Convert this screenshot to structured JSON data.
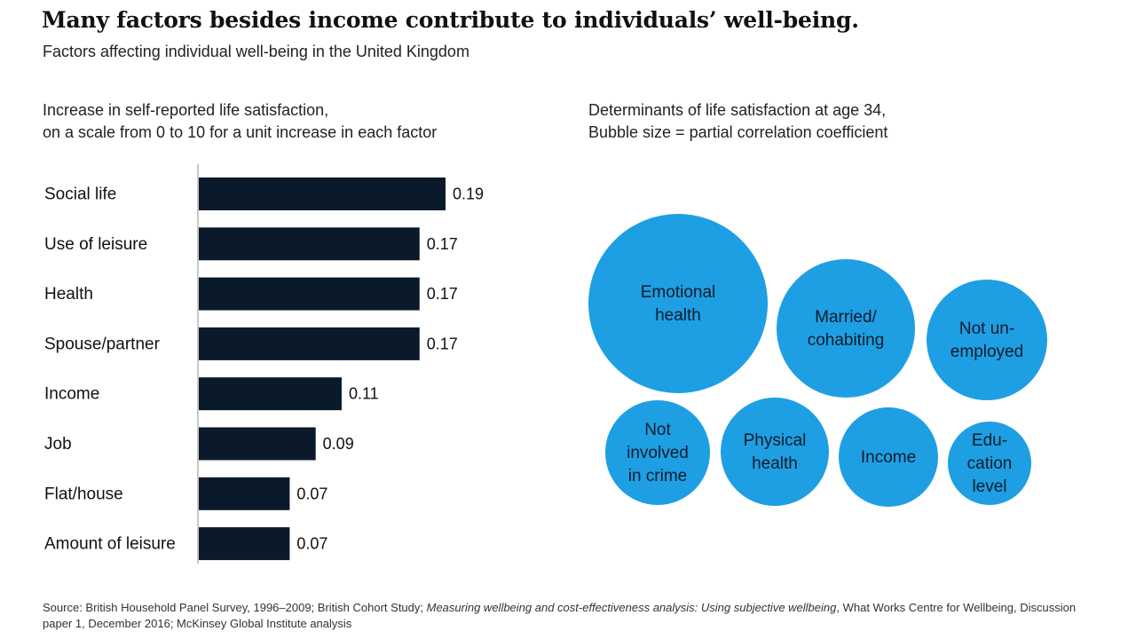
{
  "title": "Many factors besides income contribute to individuals’ well-being.",
  "subtitle": "Factors affecting individual well-being in the United Kingdom",
  "chart_data": [
    {
      "type": "bar",
      "orientation": "horizontal",
      "description_line1": "Increase in self-reported life satisfaction,",
      "description_line2": "on a scale from 0 to 10 for a unit increase in each factor",
      "categories": [
        "Social life",
        "Use of leisure",
        "Health",
        "Spouse/partner",
        "Income",
        "Job",
        "Flat/house",
        "Amount of leisure"
      ],
      "values": [
        0.19,
        0.17,
        0.17,
        0.17,
        0.11,
        0.09,
        0.07,
        0.07
      ],
      "value_labels": [
        "0.19",
        "0.17",
        "0.17",
        "0.17",
        "0.11",
        "0.09",
        "0.07",
        "0.07"
      ],
      "xlim": [
        0,
        0.19
      ],
      "bar_color": "#0b1a2a"
    },
    {
      "type": "bubble",
      "description_line1": "Determinants of life satisfaction at age 34,",
      "description_line2": "Bubble size = partial correlation coefficient",
      "bubble_color": "#1e9fe3",
      "bubbles": [
        {
          "label": [
            "Emotional",
            "health"
          ],
          "size_rank": 1
        },
        {
          "label": [
            "Married/",
            "cohabiting"
          ],
          "size_rank": 2
        },
        {
          "label": [
            "Not un-",
            "employed"
          ],
          "size_rank": 3
        },
        {
          "label": [
            "Not",
            "involved",
            "in crime"
          ],
          "size_rank": 4
        },
        {
          "label": [
            "Physical",
            "health"
          ],
          "size_rank": 5
        },
        {
          "label": [
            "Income"
          ],
          "size_rank": 6
        },
        {
          "label": [
            "Edu-",
            "cation",
            "level"
          ],
          "size_rank": 7
        }
      ]
    }
  ],
  "source": {
    "part1": "Source: British Household Panel Survey, 1996–2009; British Cohort Study; ",
    "part2": "Measuring wellbeing and cost-effectiveness analysis: Using subjective wellbeing",
    "part3": ", What Works Centre for Wellbeing, Discussion paper 1, December 2016; McKinsey Global Institute analysis"
  }
}
